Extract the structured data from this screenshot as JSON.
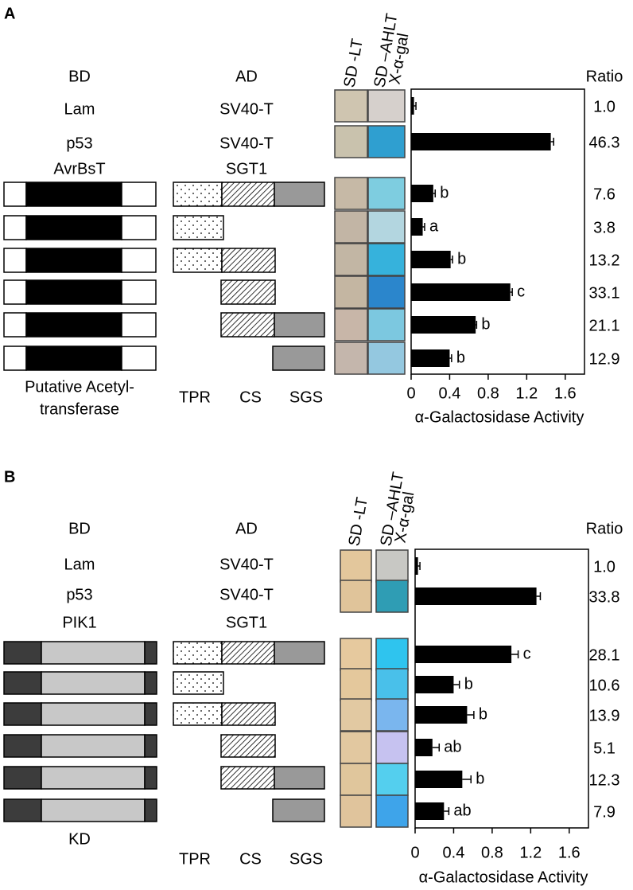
{
  "chart_data": [
    {
      "type": "bar",
      "orientation": "horizontal",
      "panel": "A",
      "headers": {
        "bd": "BD",
        "ad": "AD",
        "plate1": "SD -LT",
        "plate2": [
          "SD –AHLT",
          "X-α-gal"
        ],
        "ratio": "Ratio"
      },
      "controls": [
        {
          "bd": "Lam",
          "ad": "SV40-T"
        },
        {
          "bd": "p53",
          "ad": "SV40-T"
        }
      ],
      "construct_header": {
        "bd": "AvrBsT",
        "ad": "SGT1"
      },
      "bd_footer": [
        "Putative Acetyl-",
        "transferase"
      ],
      "domains": [
        "TPR",
        "CS",
        "SGS"
      ],
      "bd_colors": [
        "#ffffff",
        "#000000",
        "#ffffff"
      ],
      "plate_colors": [
        [
          "#cfc5b0",
          "#d6d0cc"
        ],
        [
          "#c9c2ad",
          "#2f9fd0"
        ],
        [
          "#c6b9a6",
          "#7ecde0"
        ],
        [
          "#c2b5a5",
          "#b3d6e0"
        ],
        [
          "#c2b6a4",
          "#36b2dc"
        ],
        [
          "#c4b6a2",
          "#2b86cc"
        ],
        [
          "#c8b6a8",
          "#7cc8e0"
        ],
        [
          "#c4b6ac",
          "#94c8e0"
        ]
      ],
      "categories": [
        null,
        null,
        null,
        null,
        null,
        null,
        null,
        null
      ],
      "values": [
        0.03,
        1.45,
        0.23,
        0.12,
        0.41,
        1.03,
        0.67,
        0.4
      ],
      "errors": [
        0.02,
        0.03,
        0.02,
        0.02,
        0.02,
        0.02,
        0.01,
        0.02
      ],
      "annotations": [
        null,
        null,
        "b",
        "a",
        "b",
        "c",
        "b",
        "b"
      ],
      "ratios": [
        "1.0",
        "46.3",
        "7.6",
        "3.8",
        "13.2",
        "33.1",
        "21.1",
        "12.9"
      ],
      "color": "#000000",
      "xlim": [
        0,
        1.8
      ],
      "xticks": [
        0,
        0.4,
        0.8,
        1.2,
        1.6
      ],
      "xlabel": "α-Galactosidase Activity"
    },
    {
      "type": "bar",
      "orientation": "horizontal",
      "panel": "B",
      "headers": {
        "bd": "BD",
        "ad": "AD",
        "plate1": "SD -LT",
        "plate2": [
          "SD –AHLT",
          "X-α-gal"
        ],
        "ratio": "Ratio"
      },
      "controls": [
        {
          "bd": "Lam",
          "ad": "SV40-T"
        },
        {
          "bd": "p53",
          "ad": "SV40-T"
        }
      ],
      "construct_header": {
        "bd": "PIK1",
        "ad": "SGT1"
      },
      "bd_footer": [
        "KD"
      ],
      "domains": [
        "TPR",
        "CS",
        "SGS"
      ],
      "bd_colors": [
        "#3c3c3c",
        "#c8c8c8",
        "#3c3c3c"
      ],
      "plate_colors": [
        [
          "#e3c79c",
          "#c8c8c4"
        ],
        [
          "#e0c49a",
          "#2f9db4"
        ],
        [
          "#e6c99e",
          "#2fc4ee"
        ],
        [
          "#e4c89c",
          "#49c0ea"
        ],
        [
          "#e2c9a2",
          "#7ab6ee"
        ],
        [
          "#e2c8a0",
          "#c6c2f0"
        ],
        [
          "#e0c69c",
          "#54cfee"
        ],
        [
          "#e0c49c",
          "#3ea4ea"
        ]
      ],
      "categories": [
        null,
        null,
        null,
        null,
        null,
        null,
        null,
        null
      ],
      "values": [
        0.03,
        1.26,
        1.0,
        0.4,
        0.54,
        0.18,
        0.49,
        0.3
      ],
      "errors": [
        0.02,
        0.04,
        0.07,
        0.06,
        0.07,
        0.07,
        0.09,
        0.05
      ],
      "annotations": [
        null,
        null,
        "c",
        "b",
        "b",
        "ab",
        "b",
        "ab"
      ],
      "ratios": [
        "1.0",
        "33.8",
        "28.1",
        "10.6",
        "13.9",
        "5.1",
        "12.3",
        "7.9"
      ],
      "color": "#000000",
      "xlim": [
        0,
        1.8
      ],
      "xticks": [
        0,
        0.4,
        0.8,
        1.2,
        1.6
      ],
      "xlabel": "α-Galactosidase Activity"
    }
  ]
}
